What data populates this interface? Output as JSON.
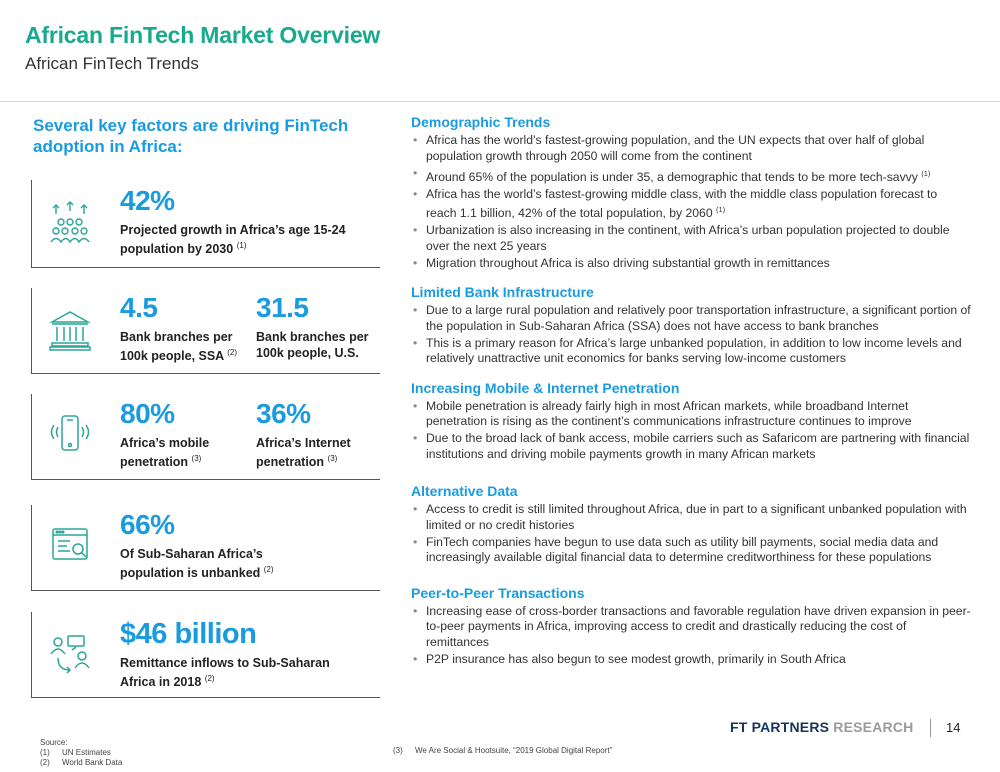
{
  "header": {
    "title": "African FinTech Market Overview",
    "subtitle": "African FinTech Trends"
  },
  "left": {
    "heading": "Several key factors are driving FinTech adoption in Africa:",
    "stats": [
      {
        "icon": "population-growth-icon",
        "value": "42%",
        "label": "Projected growth in Africa’s age 15-24 population by 2030",
        "ref": "(1)"
      },
      {
        "icon": "bank-icon",
        "value": "4.5",
        "label": "Bank branches per 100k people, SSA",
        "ref": "(2)"
      },
      {
        "value": "31.5",
        "label": "Bank branches per 100k people, U.S."
      },
      {
        "icon": "mobile-phone-icon",
        "value": "80%",
        "label": "Africa’s mobile penetration",
        "ref": "(3)"
      },
      {
        "value": "36%",
        "label": "Africa’s Internet penetration",
        "ref": "(3)"
      },
      {
        "icon": "unbanked-web-icon",
        "value": "66%",
        "label": "Of Sub-Saharan Africa’s population is unbanked",
        "ref": "(2)"
      },
      {
        "icon": "remittance-icon",
        "value": "$46 billion",
        "label": "Remittance inflows to Sub-Saharan Africa in 2018",
        "ref": "(2)"
      }
    ]
  },
  "sections": [
    {
      "title": "Demographic Trends",
      "bullets": [
        {
          "text": "Africa has the world’s fastest-growing population, and the UN expects that over half of global population growth through 2050 will come from the continent"
        },
        {
          "text": "Around 65% of the population is under 35, a demographic that tends to be more tech-savvy",
          "ref": "(1)"
        },
        {
          "text": "Africa has the world’s fastest-growing middle class, with the middle class population forecast to reach 1.1 billion, 42% of the total population, by 2060",
          "ref": "(1)"
        },
        {
          "text": "Urbanization is also increasing in the continent, with Africa’s urban population projected to double over the next 25 years"
        },
        {
          "text": "Migration throughout Africa is also driving substantial growth in remittances"
        }
      ]
    },
    {
      "title": "Limited Bank Infrastructure",
      "bullets": [
        {
          "text": "Due to a large rural population and relatively poor transportation infrastructure, a significant portion of the population in Sub-Saharan Africa (SSA) does not have access to bank branches"
        },
        {
          "text": "This is a primary reason for Africa’s large unbanked population, in addition to low income levels and relatively unattractive unit economics for banks serving low-income customers"
        }
      ]
    },
    {
      "title": "Increasing Mobile & Internet Penetration",
      "bullets": [
        {
          "text": "Mobile penetration is already fairly high in most African markets, while broadband Internet penetration is rising as the continent’s communications infrastructure continues to improve"
        },
        {
          "text": "Due to the broad lack of bank access, mobile carriers such as Safaricom are partnering with financial institutions and driving mobile payments growth in many African markets"
        }
      ]
    },
    {
      "title": "Alternative Data",
      "bullets": [
        {
          "text": "Access to credit is still limited throughout Africa, due in part to a significant unbanked population with limited or no credit histories"
        },
        {
          "text": "FinTech companies have begun to use data such as utility bill payments, social media data and increasingly available digital financial data to determine creditworthiness for these populations"
        }
      ]
    },
    {
      "title": "Peer-to-Peer Transactions",
      "bullets": [
        {
          "text": "Increasing ease of cross-border transactions and favorable regulation have driven expansion in peer-to-peer payments in Africa, improving access to credit and drastically reducing the cost of remittances"
        },
        {
          "text": "P2P insurance has also begun to see modest growth, primarily in South Africa"
        }
      ]
    }
  ],
  "footer": {
    "brand_main": "FT PARTNERS",
    "brand_sub": "RESEARCH",
    "page": "14",
    "source_label": "Source:",
    "sources": [
      {
        "n": "(1)",
        "text": "UN Estimates"
      },
      {
        "n": "(2)",
        "text": "World Bank Data"
      },
      {
        "n": "(3)",
        "text": "We Are Social & Hootsuite, “2019 Global Digital Report”"
      }
    ]
  },
  "colors": {
    "title_green": "#19a98c",
    "accent_blue": "#1a9be0",
    "brand_navy": "#17345c",
    "icon_teal": "#2aa597"
  }
}
